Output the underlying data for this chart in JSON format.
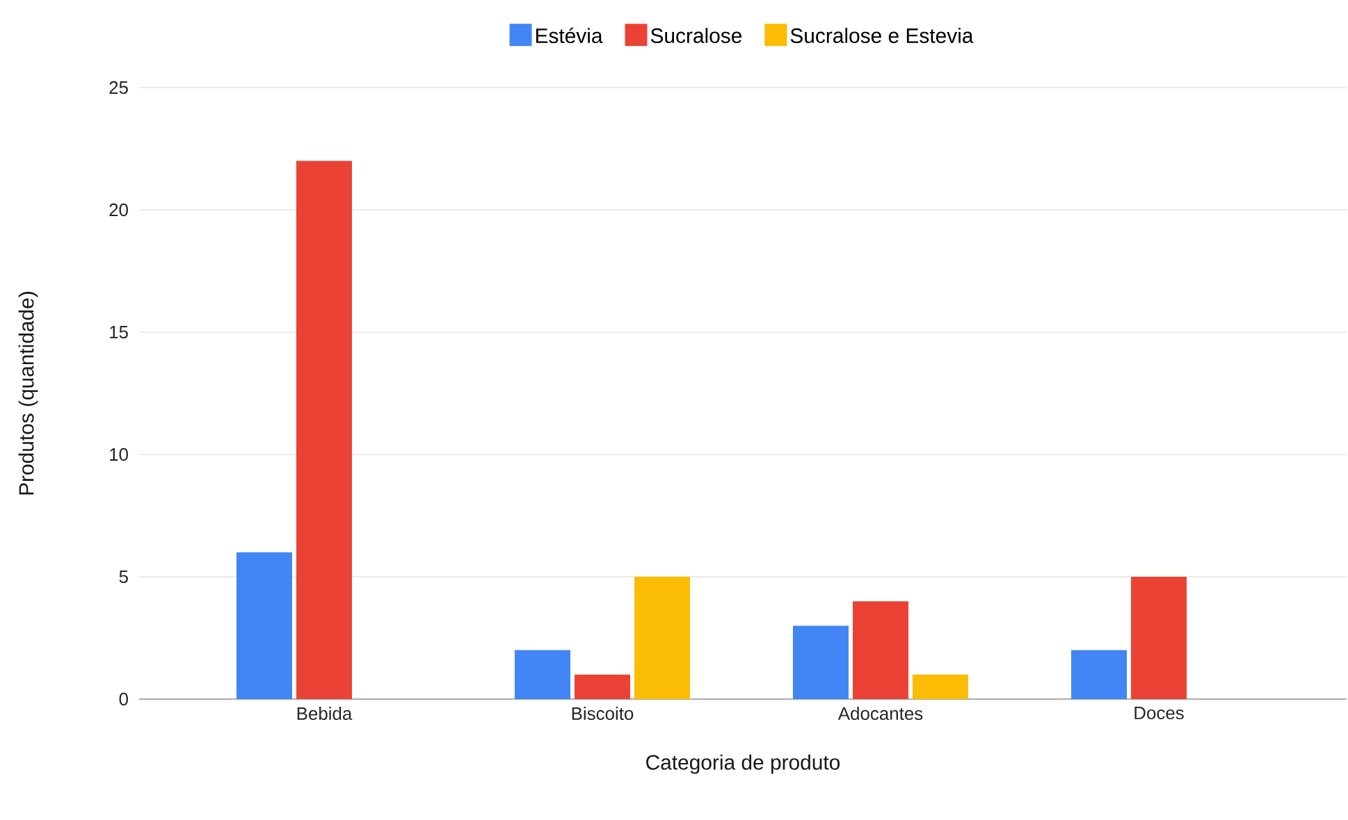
{
  "chart_data": {
    "type": "bar",
    "xlabel": "Categoria de produto",
    "ylabel": "Produtos (quantidade)",
    "categories": [
      "Bebida",
      "Biscoito",
      "Adocantes",
      "Doces"
    ],
    "series": [
      {
        "name": "Estévia",
        "color": "#4285f4",
        "values": [
          6,
          2,
          3,
          2
        ]
      },
      {
        "name": "Sucralose",
        "color": "#ea4335",
        "values": [
          22,
          1,
          4,
          5
        ]
      },
      {
        "name": "Sucralose e Estevia",
        "color": "#fbbc04",
        "values": [
          null,
          5,
          1,
          null
        ]
      }
    ],
    "ylim": [
      0,
      25
    ],
    "yticks": [
      0,
      5,
      10,
      15,
      20,
      25
    ],
    "grid": "y",
    "legend": "top"
  }
}
